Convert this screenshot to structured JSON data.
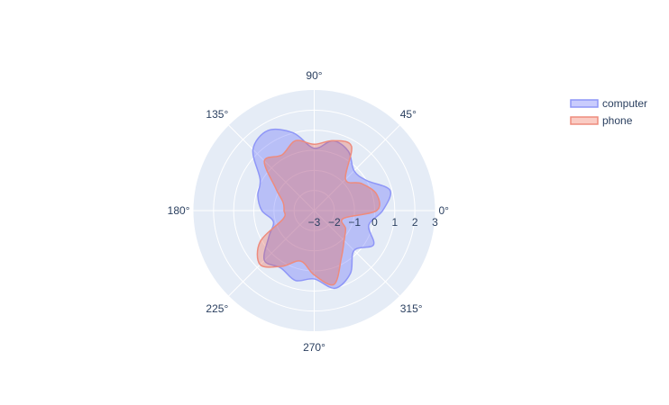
{
  "chart_data": {
    "type": "polar-area",
    "radial_axis": {
      "range": [
        -3,
        3
      ],
      "tick_values": [
        -3,
        -2,
        -1,
        0,
        1,
        2,
        3
      ],
      "tick_labels": [
        "−3",
        "−2",
        "−1",
        "0",
        "1",
        "2",
        "3"
      ],
      "tick_angle_deg": 0
    },
    "angular_axis": {
      "unit": "degrees",
      "tick_values": [
        0,
        45,
        90,
        135,
        180,
        225,
        270,
        315
      ],
      "tick_labels": [
        "0°",
        "45°",
        "90°",
        "135°",
        "180°",
        "225°",
        "270°",
        "315°"
      ]
    },
    "grid": true,
    "legend": {
      "position": "top-right"
    },
    "series": [
      {
        "name": "computer",
        "fill_color": "rgba(99,110,250,0.35)",
        "line_color": "#8e96f7",
        "theta": [
          0,
          15,
          30,
          45,
          60,
          75,
          90,
          105,
          120,
          135,
          150,
          165,
          180,
          195,
          210,
          225,
          240,
          255,
          270,
          285,
          300,
          315,
          330,
          345
        ],
        "r": [
          0.4,
          0.9,
          0.0,
          -0.2,
          0.4,
          0.6,
          0.1,
          1.0,
          1.6,
          1.3,
          0.1,
          -0.1,
          -0.4,
          -0.9,
          -0.4,
          0.5,
          0.3,
          0.6,
          0.4,
          1.0,
          0.6,
          -0.2,
          0.4,
          -0.2
        ]
      },
      {
        "name": "phone",
        "fill_color": "rgba(239,85,59,0.3)",
        "line_color": "#ee8b7d",
        "theta": [
          0,
          15,
          30,
          45,
          60,
          75,
          90,
          105,
          120,
          135,
          150,
          165,
          180,
          195,
          210,
          225,
          240,
          255,
          270,
          285,
          300,
          315,
          330,
          345
        ],
        "r": [
          0.1,
          0.2,
          -0.3,
          -0.8,
          0.7,
          0.6,
          0.3,
          0.6,
          0.2,
          0.5,
          -0.8,
          -1.4,
          -1.5,
          -1.4,
          0.1,
          0.8,
          0.2,
          -0.4,
          0.2,
          0.8,
          -0.3,
          -0.9,
          -1.2,
          -1.5
        ]
      }
    ]
  }
}
